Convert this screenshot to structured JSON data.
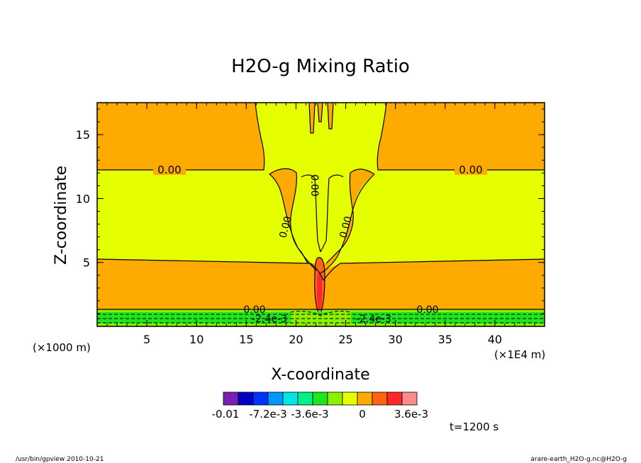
{
  "chart_data": {
    "type": "heatmap",
    "title": "H2O-g Mixing Ratio",
    "xlabel": "X-coordinate",
    "ylabel": "Z-coordinate",
    "x_unit_left": "(×1000 m)",
    "x_unit_right": "(×1E4 m)",
    "xlim": [
      0,
      45
    ],
    "ylim": [
      0,
      17.5
    ],
    "x_ticks": [
      "5",
      "10",
      "15",
      "20",
      "25",
      "30",
      "35",
      "40"
    ],
    "y_ticks": [
      "5",
      "10",
      "15"
    ],
    "contour_labels": [
      "0.00",
      "0.00",
      "0.00",
      "0.00",
      "0.00",
      "0.00",
      "0.00",
      "0.00",
      "-2.4e-3",
      "-2.4e-3"
    ],
    "colorbar": {
      "colors": [
        "#7a1fb4",
        "#0000c8",
        "#0032ff",
        "#0096ff",
        "#00e6e6",
        "#00f08c",
        "#1ee61e",
        "#8cf000",
        "#e6ff00",
        "#ffaa00",
        "#ff6414",
        "#ff2828",
        "#ff8c8c"
      ],
      "labels": [
        "-0.01",
        "-7.2e-3",
        "-3.6e-3",
        "0",
        "3.6e-3"
      ]
    },
    "time_label": "t=1200 s",
    "footer_left": "/usr/bin/gpview  2010-10-21",
    "footer_right": "arare-earth_H2O-g.nc@H2O-g",
    "colors": {
      "orange": "#ffaa00",
      "yellow": "#e6ff00",
      "green": "#1ee61e",
      "lime": "#8cf000",
      "red": "#ff6414",
      "darkred": "#ff2828"
    }
  }
}
